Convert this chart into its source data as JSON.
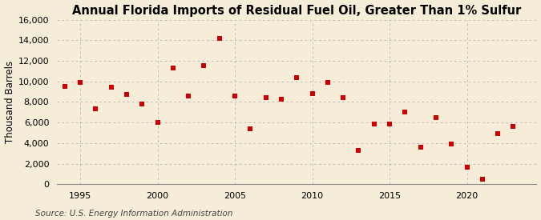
{
  "title": "Annual Florida Imports of Residual Fuel Oil, Greater Than 1% Sulfur",
  "ylabel": "Thousand Barrels",
  "source": "Source: U.S. Energy Information Administration",
  "years": [
    1994,
    1995,
    1996,
    1997,
    1998,
    1999,
    2000,
    2001,
    2002,
    2003,
    2004,
    2005,
    2006,
    2007,
    2008,
    2009,
    2010,
    2011,
    2012,
    2013,
    2014,
    2015,
    2016,
    2017,
    2018,
    2019,
    2020,
    2021,
    2022,
    2023
  ],
  "values": [
    9500,
    9900,
    7300,
    9400,
    8700,
    7800,
    6000,
    11300,
    8600,
    11500,
    14200,
    8600,
    5400,
    8400,
    8300,
    10400,
    8800,
    9900,
    8400,
    3300,
    5900,
    5900,
    7000,
    3600,
    6500,
    3900,
    1700,
    500,
    4900,
    5600
  ],
  "marker_color": "#cc0000",
  "marker_size": 5,
  "bg_color": "#f5edd8",
  "grid_color": "#b0b0b0",
  "ylim": [
    0,
    16000
  ],
  "yticks": [
    0,
    2000,
    4000,
    6000,
    8000,
    10000,
    12000,
    14000,
    16000
  ],
  "ytick_labels": [
    "0",
    "2,000",
    "4,000",
    "6,000",
    "8,000",
    "10,000",
    "12,000",
    "14,000",
    "16,000"
  ],
  "xlim": [
    1993.5,
    2024.5
  ],
  "xticks": [
    1995,
    2000,
    2005,
    2010,
    2015,
    2020
  ],
  "title_fontsize": 10.5,
  "label_fontsize": 8.5,
  "tick_fontsize": 8,
  "source_fontsize": 7.5
}
